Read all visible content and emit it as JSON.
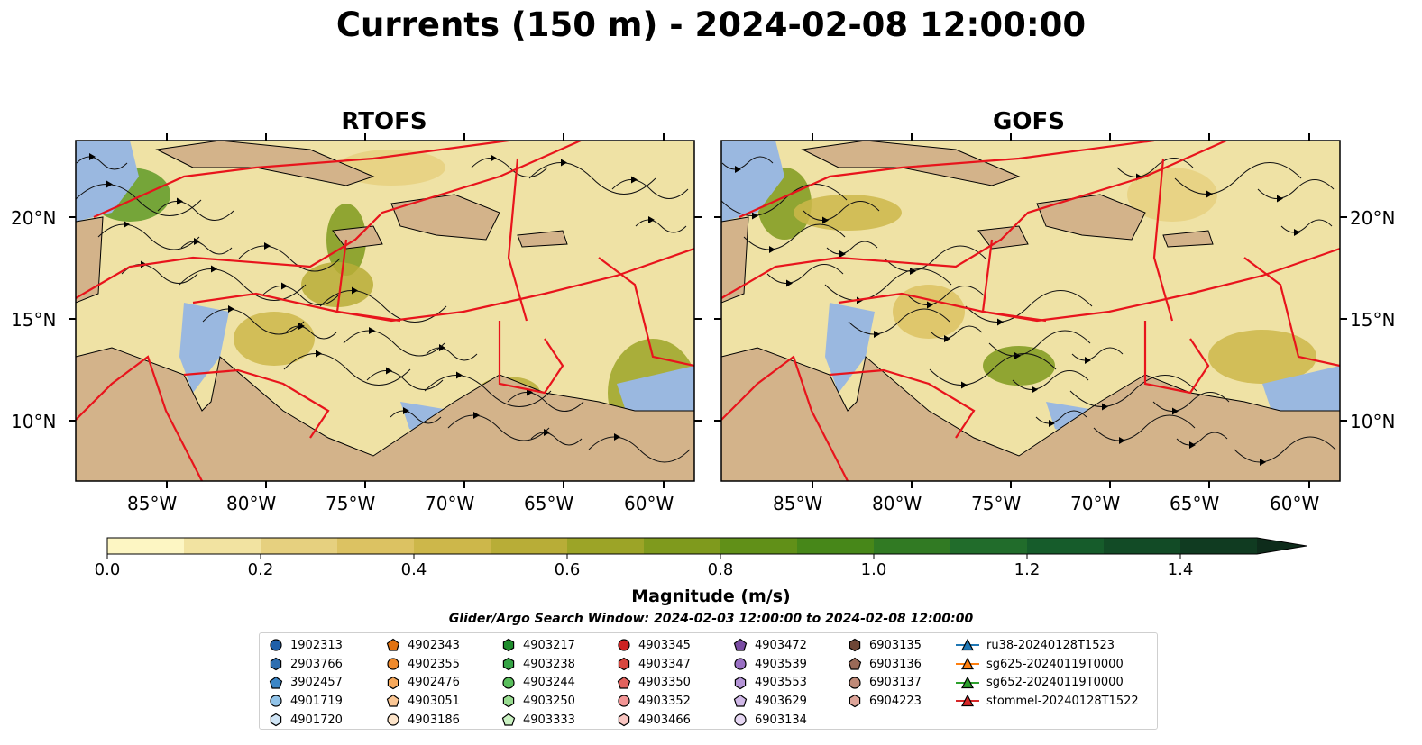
{
  "title": "Currents (150 m) - 2024-02-08 12:00:00",
  "panels": [
    {
      "title": "RTOFS"
    },
    {
      "title": "GOFS"
    }
  ],
  "lat_labels": [
    "20°N",
    "15°N",
    "10°N"
  ],
  "lon_labels": [
    "85°W",
    "80°W",
    "75°W",
    "70°W",
    "65°W",
    "60°W"
  ],
  "colorbar": {
    "label": "Magnitude (m/s)",
    "tick_labels": [
      "0.0",
      "0.2",
      "0.4",
      "0.6",
      "0.8",
      "1.0",
      "1.2",
      "1.4"
    ],
    "vmin": 0.0,
    "vmax": 1.5,
    "step": 0.1,
    "extend": "max",
    "colors": [
      "#fdf6c3",
      "#f2e3a1",
      "#e6d07f",
      "#dcc262",
      "#cdb74a",
      "#b8ad37",
      "#9ca427",
      "#7f9a1d",
      "#619018",
      "#478719",
      "#317a23",
      "#216c2b",
      "#165c2b",
      "#124b26",
      "#103b21",
      "#0e2c1b"
    ]
  },
  "search_window": "Glider/Argo Search Window: 2024-02-03 12:00:00 to 2024-02-08 12:00:00",
  "legend": {
    "columns": [
      [
        {
          "label": "1902313",
          "marker": "circle",
          "color": "#1f5fa8"
        },
        {
          "label": "2903766",
          "marker": "hexagon",
          "color": "#2e6eb0"
        },
        {
          "label": "3902457",
          "marker": "pentagon",
          "color": "#3c86c6"
        },
        {
          "label": "4901719",
          "marker": "circle",
          "color": "#91c3e8"
        },
        {
          "label": "4901720",
          "marker": "hexagon",
          "color": "#cfe4f5"
        }
      ],
      [
        {
          "label": "4902343",
          "marker": "pentagon",
          "color": "#e3720f"
        },
        {
          "label": "4902355",
          "marker": "circle",
          "color": "#f08a2c"
        },
        {
          "label": "4902476",
          "marker": "hexagon",
          "color": "#f6a85b"
        },
        {
          "label": "4903051",
          "marker": "pentagon",
          "color": "#fbc795"
        },
        {
          "label": "4903186",
          "marker": "circle",
          "color": "#fde4c9"
        }
      ],
      [
        {
          "label": "4903217",
          "marker": "hexagon",
          "color": "#1e8c2c"
        },
        {
          "label": "4903238",
          "marker": "hexagon",
          "color": "#35a345"
        },
        {
          "label": "4903244",
          "marker": "circle",
          "color": "#59bf5c"
        },
        {
          "label": "4903250",
          "marker": "hexagon",
          "color": "#98dc90"
        },
        {
          "label": "4903333",
          "marker": "pentagon",
          "color": "#c9f1c1"
        }
      ],
      [
        {
          "label": "4903345",
          "marker": "circle",
          "color": "#cc2222"
        },
        {
          "label": "4903347",
          "marker": "hexagon",
          "color": "#d8473f"
        },
        {
          "label": "4903350",
          "marker": "pentagon",
          "color": "#e3635e"
        },
        {
          "label": "4903352",
          "marker": "circle",
          "color": "#f29595"
        },
        {
          "label": "4903466",
          "marker": "hexagon",
          "color": "#f8c4c0"
        }
      ],
      [
        {
          "label": "4903472",
          "marker": "pentagon",
          "color": "#7a4ca3"
        },
        {
          "label": "4903539",
          "marker": "circle",
          "color": "#9a70c4"
        },
        {
          "label": "4903553",
          "marker": "hexagon",
          "color": "#b494d6"
        },
        {
          "label": "4903629",
          "marker": "pentagon",
          "color": "#d0b8e7"
        },
        {
          "label": "6903134",
          "marker": "circle",
          "color": "#e6d7f3"
        }
      ],
      [
        {
          "label": "6903135",
          "marker": "hexagon",
          "color": "#6e4636"
        },
        {
          "label": "6903136",
          "marker": "pentagon",
          "color": "#9a6a58"
        },
        {
          "label": "6903137",
          "marker": "circle",
          "color": "#c08a78"
        },
        {
          "label": "6904223",
          "marker": "hexagon",
          "color": "#dea59a"
        }
      ],
      [
        {
          "label": "ru38-20240128T1523",
          "marker": "triangle-line",
          "color": "#1f77b4"
        },
        {
          "label": "sg625-20240119T0000",
          "marker": "triangle-line",
          "color": "#ff7f0e"
        },
        {
          "label": "sg652-20240119T0000",
          "marker": "triangle-line",
          "color": "#2ca02c"
        },
        {
          "label": "stommel-20240128T1522",
          "marker": "triangle-line",
          "color": "#d62728"
        }
      ]
    ]
  }
}
